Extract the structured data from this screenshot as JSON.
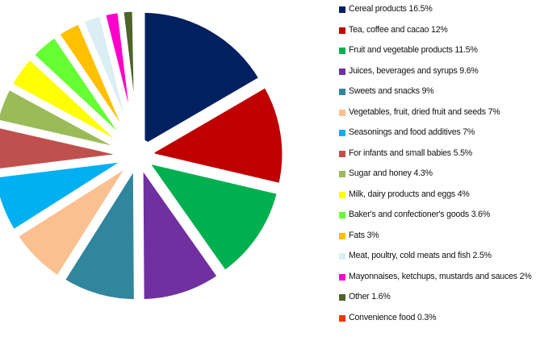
{
  "chart_data": {
    "type": "pie",
    "title": "",
    "exploded": true,
    "slices": [
      {
        "label": "Cereal products 16.5%",
        "value": 16.5,
        "color": "#002060"
      },
      {
        "label": "Tea, coffee and cacao 12%",
        "value": 12,
        "color": "#C00000"
      },
      {
        "label": "Fruit and vegetable products 11.5%",
        "value": 11.5,
        "color": "#00B050"
      },
      {
        "label": "Juices, beverages and syrups 9.6%",
        "value": 9.6,
        "color": "#7030A0"
      },
      {
        "label": "Sweets and snacks 9%",
        "value": 9,
        "color": "#31859C"
      },
      {
        "label": "Vegetables, fruit, dried fruit and seeds 7%",
        "value": 7,
        "color": "#FAC090"
      },
      {
        "label": "Seasonings and food additives 7%",
        "value": 7,
        "color": "#00B0F0"
      },
      {
        "label": "For infants and small babies 5.5%",
        "value": 5.5,
        "color": "#C0504D"
      },
      {
        "label": "Sugar and honey 4.3%",
        "value": 4.3,
        "color": "#9BBB59"
      },
      {
        "label": "Milk, dairy products and eggs 4%",
        "value": 4,
        "color": "#FFFF00"
      },
      {
        "label": "Baker's and confectioner's goods 3.6%",
        "value": 3.6,
        "color": "#66FF33"
      },
      {
        "label": "Fats 3%",
        "value": 3,
        "color": "#FFC000"
      },
      {
        "label": "Meat, poultry, cold meats and fish 2.5%",
        "value": 2.5,
        "color": "#DAEEF3"
      },
      {
        "label": "Mayonnaises, ketchups, mustards and sauces 2%",
        "value": 2,
        "color": "#FF00CC"
      },
      {
        "label": "Other 1.6%",
        "value": 1.6,
        "color": "#4F6228"
      },
      {
        "label": "Convenience food 0.3%",
        "value": 0.3,
        "color": "#FF3300"
      }
    ],
    "legend_position": "right"
  }
}
